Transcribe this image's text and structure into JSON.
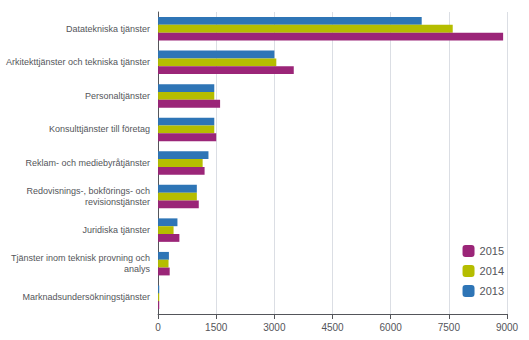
{
  "chart_data": {
    "type": "bar",
    "orientation": "horizontal",
    "categories": [
      "Datatekniska tjänster",
      "Arkitekttjänster och tekniska tjänster",
      "Personaltjänster",
      "Konsulttjänster till företag",
      "Reklam- och mediebyråtjänster",
      "Redovisnings-, bokförings- och\nrevisionstjänster",
      "Juridiska tjänster",
      "Tjänster inom teknisk provning och\nanalys",
      "Marknadsundersökningstjänster"
    ],
    "series": [
      {
        "name": "2013",
        "color": "#2e75b6",
        "values": [
          6800,
          3000,
          1450,
          1450,
          1300,
          1000,
          500,
          280,
          30
        ]
      },
      {
        "name": "2014",
        "color": "#b5bd00",
        "values": [
          7600,
          3050,
          1450,
          1450,
          1150,
          1000,
          400,
          270,
          30
        ]
      },
      {
        "name": "2015",
        "color": "#9b2578",
        "values": [
          8900,
          3500,
          1600,
          1500,
          1200,
          1050,
          550,
          300,
          30
        ]
      }
    ],
    "xlim": [
      0,
      9000
    ],
    "xticks": [
      0,
      1500,
      3000,
      4500,
      6000,
      7500,
      9000
    ],
    "grid": true,
    "legend": "lower right"
  }
}
